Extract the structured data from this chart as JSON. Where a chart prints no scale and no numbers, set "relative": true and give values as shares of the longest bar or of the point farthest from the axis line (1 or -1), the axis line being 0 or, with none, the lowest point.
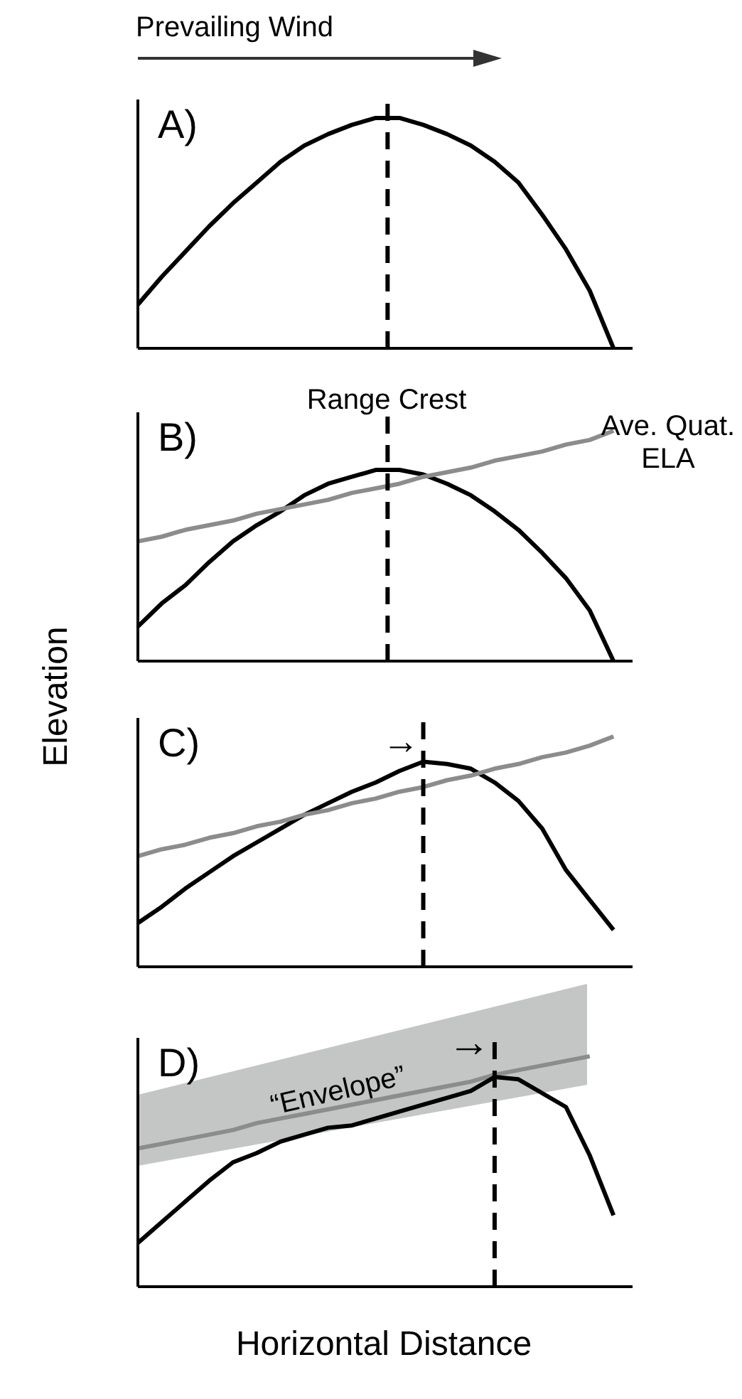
{
  "chart_data": [
    {
      "type": "line",
      "title": "A)",
      "relative": true,
      "categories": [
        null,
        null,
        null,
        null,
        null,
        null,
        null,
        null,
        null,
        null,
        null,
        null,
        null,
        null,
        null,
        null,
        null,
        null,
        null,
        null,
        null
      ],
      "series": [
        {
          "color": "#000000",
          "values": [
            0.19,
            0.31,
            0.42,
            0.53,
            0.63,
            0.72,
            0.81,
            0.88,
            0.93,
            0.97,
            1,
            1,
            0.97,
            0.93,
            0.88,
            0.81,
            0.72,
            0.58,
            0.43,
            0.25,
            0
          ]
        }
      ],
      "annotations": [
        "Prevailing Wind"
      ]
    },
    {
      "type": "line",
      "title": "B)",
      "relative": true,
      "ylabel": "Elevation",
      "categories": [
        null,
        null,
        null,
        null,
        null,
        null,
        null,
        null,
        null,
        null,
        null,
        null,
        null,
        null,
        null,
        null,
        null,
        null,
        null,
        null,
        null
      ],
      "series": [
        {
          "color": "#000000",
          "values": [
            0.15,
            0.25,
            0.33,
            0.43,
            0.52,
            0.59,
            0.65,
            0.72,
            0.77,
            0.8,
            0.83,
            0.83,
            0.81,
            0.77,
            0.72,
            0.65,
            0.57,
            0.47,
            0.36,
            0.22,
            0
          ]
        },
        {
          "color": "#8c8c8c",
          "values": [
            0.52,
            0.54,
            0.57,
            0.59,
            0.61,
            0.64,
            0.66,
            0.68,
            0.7,
            0.73,
            0.75,
            0.77,
            0.8,
            0.82,
            0.84,
            0.87,
            0.89,
            0.91,
            0.94,
            0.96,
            1
          ]
        }
      ],
      "annotations": [
        "Range Crest",
        "Ave. Quat. ELA"
      ]
    },
    {
      "type": "line",
      "title": "C)",
      "relative": true,
      "categories": [
        null,
        null,
        null,
        null,
        null,
        null,
        null,
        null,
        null,
        null,
        null,
        null,
        null,
        null,
        null,
        null,
        null,
        null,
        null,
        null,
        null
      ],
      "series": [
        {
          "color": "#000000",
          "values": [
            0.19,
            0.26,
            0.34,
            0.41,
            0.48,
            0.54,
            0.6,
            0.66,
            0.71,
            0.76,
            0.8,
            0.85,
            0.89,
            0.88,
            0.86,
            0.8,
            0.72,
            0.6,
            0.42,
            0.29,
            0.16
          ]
        },
        {
          "color": "#8c8c8c",
          "values": [
            0.48,
            0.51,
            0.53,
            0.56,
            0.58,
            0.61,
            0.63,
            0.66,
            0.68,
            0.71,
            0.73,
            0.76,
            0.78,
            0.81,
            0.83,
            0.86,
            0.88,
            0.91,
            0.93,
            0.96,
            1
          ]
        }
      ],
      "annotations": [
        "→"
      ]
    },
    {
      "type": "line",
      "title": "D)",
      "relative": true,
      "xlabel": "Horizontal Distance",
      "categories": [
        null,
        null,
        null,
        null,
        null,
        null,
        null,
        null,
        null,
        null,
        null,
        null,
        null,
        null,
        null,
        null,
        null,
        null,
        null,
        null,
        null
      ],
      "series": [
        {
          "color": "#8c8c8c",
          "values": [
            0.6,
            0.62,
            0.64,
            0.66,
            0.68,
            0.71,
            0.73,
            0.75,
            0.77,
            0.79,
            0.81,
            0.83,
            0.85,
            0.87,
            0.89,
            0.92,
            0.94,
            0.96,
            0.98,
            1,
            null
          ]
        },
        {
          "color": "#000000",
          "values": [
            0.19,
            0.28,
            0.37,
            0.46,
            0.54,
            0.58,
            0.63,
            0.66,
            0.69,
            0.7,
            0.73,
            0.76,
            0.79,
            0.82,
            0.85,
            0.91,
            0.9,
            0.84,
            0.78,
            0.57,
            0.31
          ]
        }
      ],
      "annotations": [
        "→",
        "“Envelope”"
      ]
    }
  ]
}
